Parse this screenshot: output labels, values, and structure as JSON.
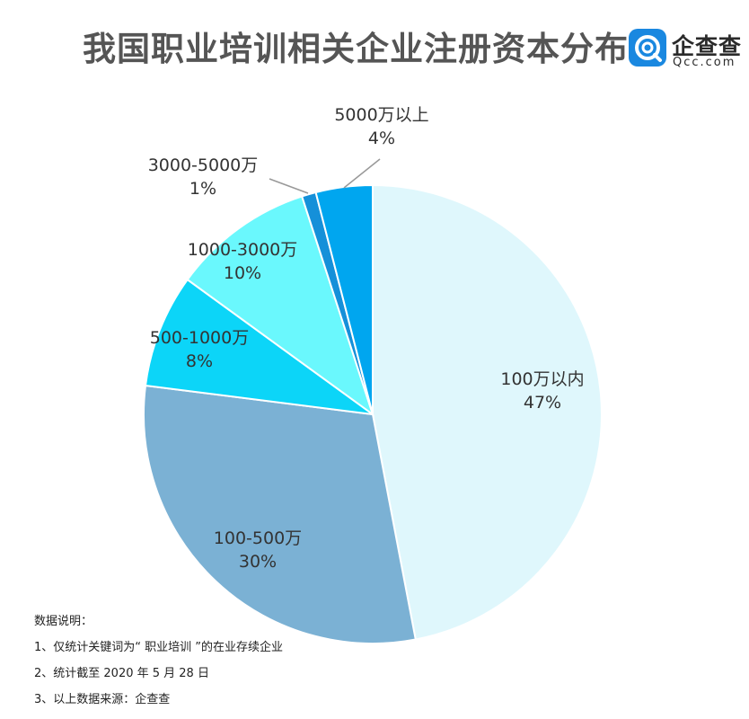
{
  "title": "我国职业培训相关企业注册资本分布",
  "logo": {
    "name": "企查查",
    "domain": "Qcc.com"
  },
  "chart_data": {
    "type": "pie",
    "title": "我国职业培训相关企业注册资本分布",
    "slices": [
      {
        "label": "100万以内",
        "value": 47,
        "pct_label": "47%",
        "color": "#dff7fc"
      },
      {
        "label": "100-500万",
        "value": 30,
        "pct_label": "30%",
        "color": "#7bb1d4"
      },
      {
        "label": "500-1000万",
        "value": 8,
        "pct_label": "8%",
        "color": "#0cd5f8"
      },
      {
        "label": "1000-3000万",
        "value": 10,
        "pct_label": "10%",
        "color": "#6af8fd"
      },
      {
        "label": "3000-5000万",
        "value": 1,
        "pct_label": "1%",
        "color": "#1590d9"
      },
      {
        "label": "5000万以上",
        "value": 4,
        "pct_label": "4%",
        "color": "#00a6ef"
      }
    ]
  },
  "notes": {
    "heading": "数据说明：",
    "items": [
      "1、仅统计关键词为“ 职业培训 ”的在业存续企业",
      "2、统计截至 2020 年 5 月 28 日",
      "3、以上数据来源：企查查"
    ]
  }
}
